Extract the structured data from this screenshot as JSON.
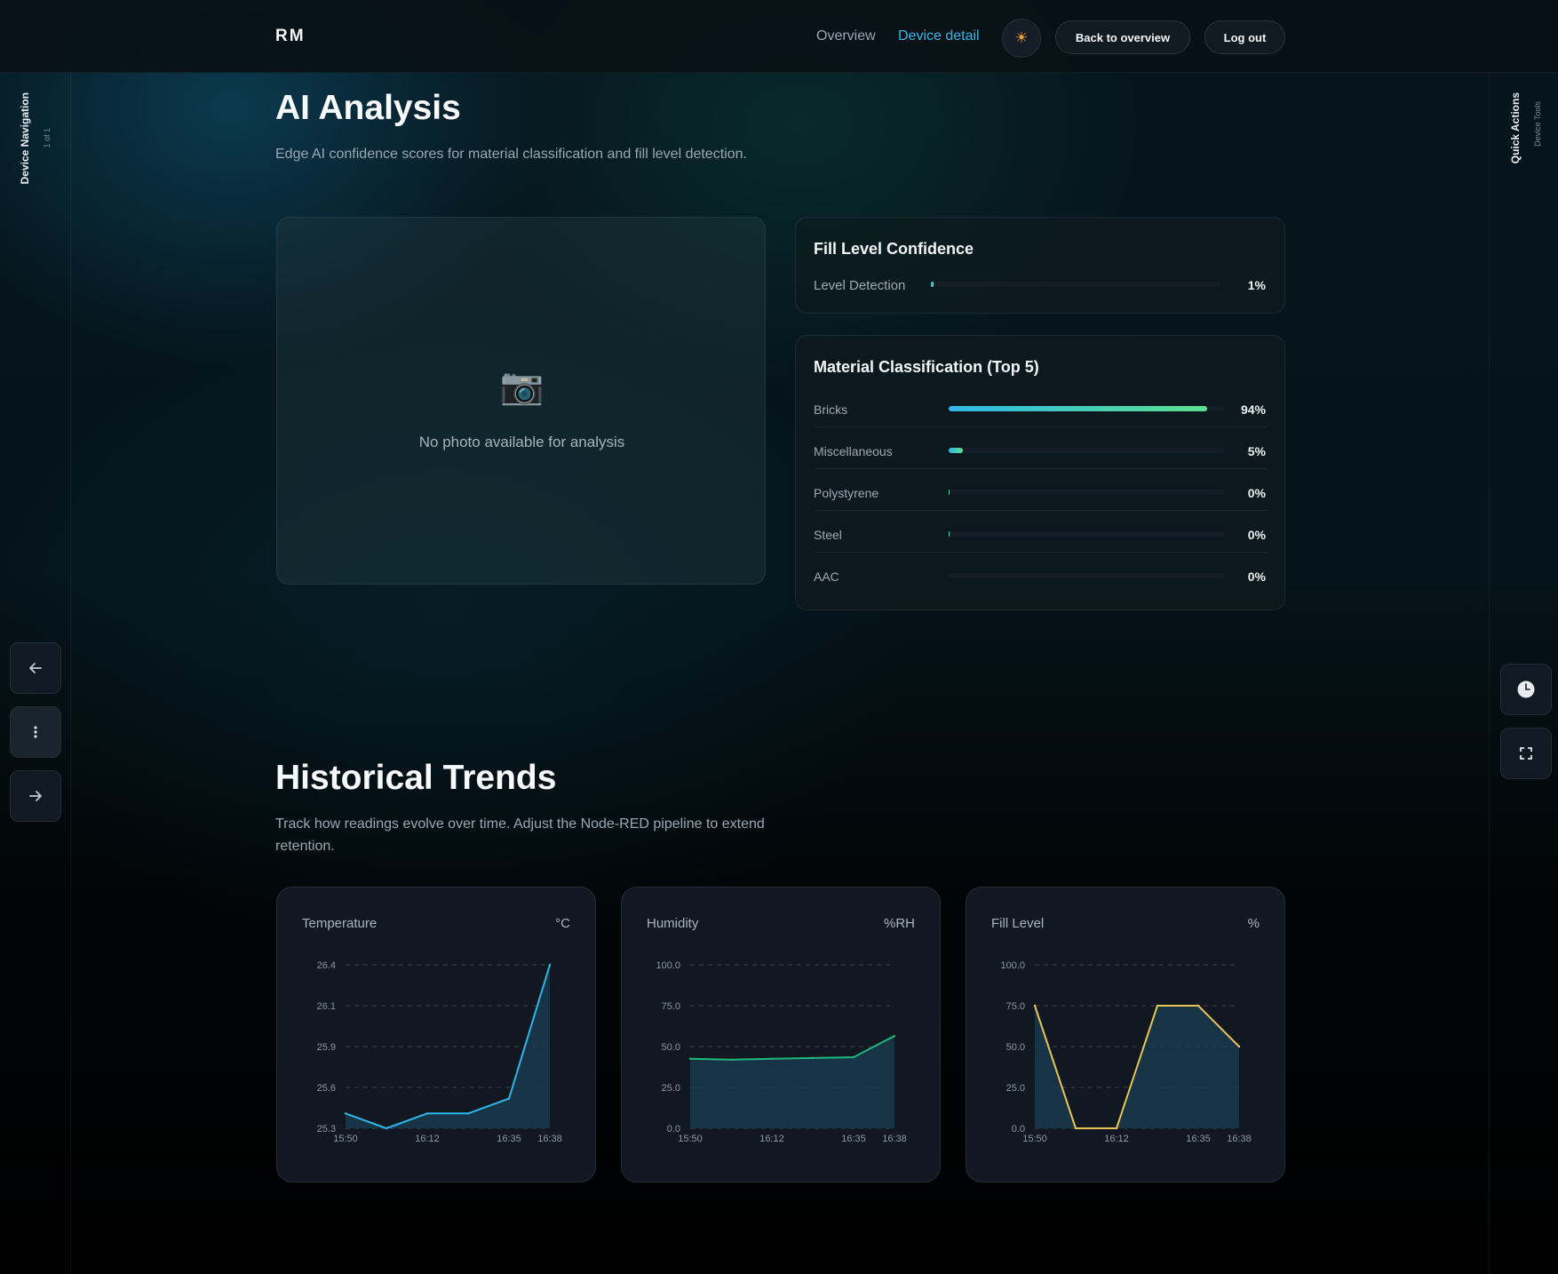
{
  "brand": "RM",
  "nav": {
    "overview": "Overview",
    "device_detail": "Device detail",
    "theme_icon": "sun-icon",
    "back_label": "Back to overview",
    "logout_label": "Log out"
  },
  "left_rail": {
    "title": "Device Navigation",
    "subtitle": "1 of 1",
    "prev_icon": "arrow-left-icon",
    "menu_icon": "more-vertical-icon",
    "next_icon": "arrow-right-icon"
  },
  "right_rail": {
    "title": "Quick Actions",
    "subtitle": "Device Tools",
    "clock_icon": "clock-icon",
    "fullscreen_icon": "fullscreen-icon"
  },
  "ai": {
    "title": "AI Analysis",
    "description": "Edge AI confidence scores for material classification and fill level detection.",
    "photo_placeholder": "No photo available for analysis",
    "fill_card": {
      "title": "Fill Level Confidence",
      "label": "Level Detection",
      "value": 1,
      "value_text": "1%"
    },
    "material_card": {
      "title": "Material Classification (Top 5)",
      "items": [
        {
          "label": "Bricks",
          "value": 94,
          "value_text": "94%"
        },
        {
          "label": "Miscellaneous",
          "value": 5,
          "value_text": "5%"
        },
        {
          "label": "Polystyrene",
          "value": 0.2,
          "value_text": "0%"
        },
        {
          "label": "Steel",
          "value": 0.2,
          "value_text": "0%"
        },
        {
          "label": "AAC",
          "value": 0,
          "value_text": "0%"
        }
      ]
    }
  },
  "trends": {
    "title": "Historical Trends",
    "description": "Track how readings evolve over time. Adjust the Node-RED pipeline to extend retention."
  },
  "chart_data": [
    {
      "type": "area",
      "title": "Temperature",
      "unit": "°C",
      "color": "#2fb6e8",
      "x": [
        "15:50",
        "",
        "16:12",
        "",
        "16:35",
        "16:38"
      ],
      "x_ticks": [
        "15:50",
        "16:12",
        "16:35",
        "16:38"
      ],
      "values": [
        25.4,
        25.3,
        25.4,
        25.4,
        25.5,
        26.4
      ],
      "y_ticks": [
        "26.4",
        "26.1",
        "25.9",
        "25.6",
        "25.3"
      ],
      "ylim": [
        25.3,
        26.4
      ],
      "grid": true
    },
    {
      "type": "area",
      "title": "Humidity",
      "unit": "%RH",
      "color": "#1fb87c",
      "x": [
        "15:50",
        "",
        "16:12",
        "",
        "16:35",
        "16:38"
      ],
      "x_ticks": [
        "15:50",
        "16:12",
        "16:35",
        "16:38"
      ],
      "values": [
        42.5,
        42.0,
        42.5,
        43.0,
        43.5,
        56.5
      ],
      "y_ticks": [
        "100.0",
        "75.0",
        "50.0",
        "25.0",
        "0.0"
      ],
      "ylim": [
        0,
        100
      ],
      "grid": true
    },
    {
      "type": "area",
      "title": "Fill Level",
      "unit": "%",
      "color": "#e8c457",
      "x": [
        "15:50",
        "",
        "16:12",
        "",
        "16:35",
        "16:38"
      ],
      "x_ticks": [
        "15:50",
        "16:12",
        "16:35",
        "16:38"
      ],
      "values": [
        75,
        0,
        0,
        75,
        75,
        50
      ],
      "y_ticks": [
        "100.0",
        "75.0",
        "50.0",
        "25.0",
        "0.0"
      ],
      "ylim": [
        0,
        100
      ],
      "grid": true
    }
  ]
}
